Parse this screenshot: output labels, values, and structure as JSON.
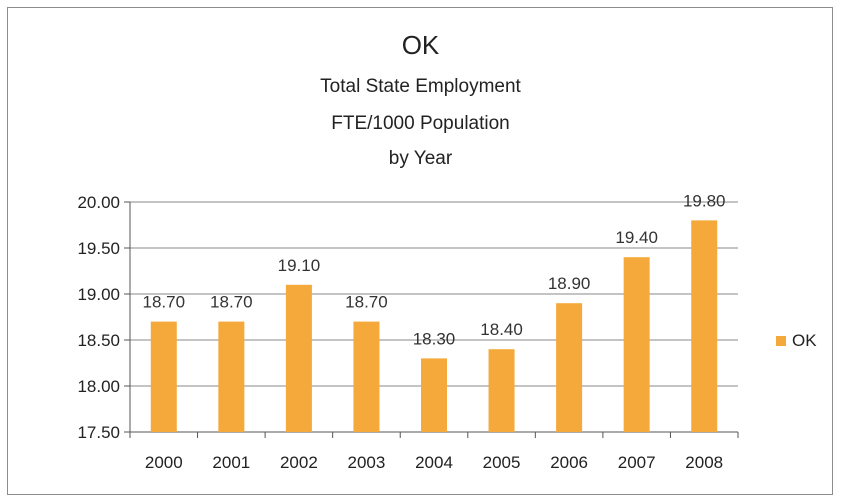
{
  "chart_data": {
    "type": "bar",
    "title": "OK",
    "subtitle_lines": [
      "Total State Employment",
      "FTE/1000 Population",
      "by Year"
    ],
    "categories": [
      "2000",
      "2001",
      "2002",
      "2003",
      "2004",
      "2005",
      "2006",
      "2007",
      "2008"
    ],
    "series": [
      {
        "name": "OK",
        "values": [
          18.7,
          18.7,
          19.1,
          18.7,
          18.3,
          18.4,
          18.9,
          19.4,
          19.8
        ]
      }
    ],
    "data_labels": [
      "18.70",
      "18.70",
      "19.10",
      "18.70",
      "18.30",
      "18.40",
      "18.90",
      "19.40",
      "19.80"
    ],
    "ylim": [
      17.5,
      20.0
    ],
    "yticks": [
      "17.50",
      "18.00",
      "18.50",
      "19.00",
      "19.50",
      "20.00"
    ],
    "ytick_values": [
      17.5,
      18.0,
      18.5,
      19.0,
      19.5,
      20.0
    ],
    "grid": true,
    "legend_position": "right",
    "bar_color": "#F4A93A"
  }
}
